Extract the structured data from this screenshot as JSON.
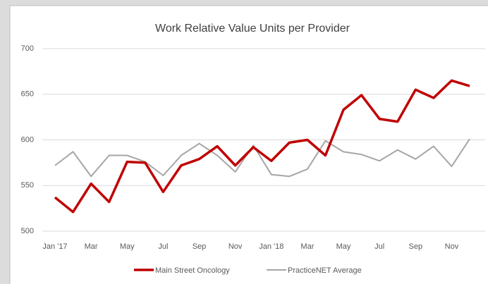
{
  "chart_data": {
    "type": "line",
    "title": "Work Relative Value Units per Provider",
    "categories": [
      "Jan '17",
      null,
      "Mar",
      null,
      "May",
      null,
      "Jul",
      null,
      "Sep",
      null,
      "Nov",
      null,
      "Jan '18",
      null,
      "Mar",
      null,
      "May",
      null,
      "Jul",
      null,
      "Sep",
      null,
      "Nov",
      null
    ],
    "series": [
      {
        "name": "Main Street Oncology",
        "color": "#c00000",
        "values": [
          537,
          521,
          552,
          532,
          576,
          575,
          543,
          572,
          579,
          593,
          572,
          592,
          577,
          597,
          600,
          583,
          633,
          649,
          623,
          620,
          655,
          646,
          665,
          659
        ]
      },
      {
        "name": "PracticeNET Average",
        "color": "#a6a6a6",
        "values": [
          572,
          587,
          560,
          583,
          583,
          576,
          561,
          583,
          596,
          583,
          565,
          594,
          562,
          560,
          568,
          599,
          587,
          584,
          577,
          589,
          579,
          593,
          571,
          601
        ]
      }
    ],
    "ylim": [
      500,
      700
    ],
    "yticks": [
      500,
      550,
      600,
      650,
      700
    ],
    "grid": true,
    "legend": "bottom"
  }
}
